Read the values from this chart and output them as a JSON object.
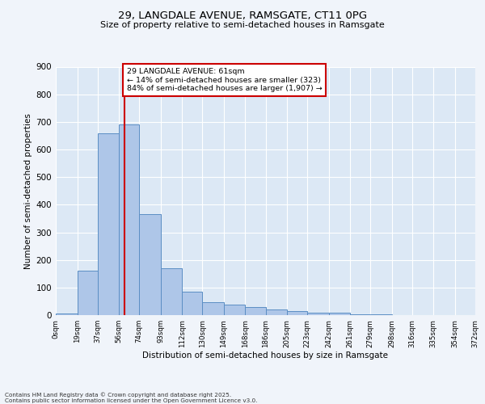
{
  "title1": "29, LANGDALE AVENUE, RAMSGATE, CT11 0PG",
  "title2": "Size of property relative to semi-detached houses in Ramsgate",
  "xlabel": "Distribution of semi-detached houses by size in Ramsgate",
  "ylabel": "Number of semi-detached properties",
  "bar_values": [
    5,
    160,
    660,
    690,
    365,
    170,
    85,
    48,
    38,
    30,
    20,
    14,
    10,
    8,
    4,
    2,
    1,
    1,
    0,
    0
  ],
  "bin_edges": [
    0,
    19,
    37,
    56,
    74,
    93,
    112,
    130,
    149,
    168,
    186,
    205,
    223,
    242,
    261,
    279,
    298,
    316,
    335,
    354,
    372
  ],
  "tick_labels": [
    "0sqm",
    "19sqm",
    "37sqm",
    "56sqm",
    "74sqm",
    "93sqm",
    "112sqm",
    "130sqm",
    "149sqm",
    "168sqm",
    "186sqm",
    "205sqm",
    "223sqm",
    "242sqm",
    "261sqm",
    "279sqm",
    "298sqm",
    "316sqm",
    "335sqm",
    "354sqm",
    "372sqm"
  ],
  "bar_facecolor": "#aec6e8",
  "bar_edgecolor": "#5b8ec4",
  "property_size": 61,
  "annotation_line1": "29 LANGDALE AVENUE: 61sqm",
  "annotation_line2": "← 14% of semi-detached houses are smaller (323)",
  "annotation_line3": "84% of semi-detached houses are larger (1,907) →",
  "vline_color": "#cc0000",
  "annotation_box_edgecolor": "#cc0000",
  "plot_bg_color": "#dce8f5",
  "fig_bg_color": "#f0f4fa",
  "grid_color": "#ffffff",
  "ylim": [
    0,
    900
  ],
  "yticks": [
    0,
    100,
    200,
    300,
    400,
    500,
    600,
    700,
    800,
    900
  ],
  "footnote1": "Contains HM Land Registry data © Crown copyright and database right 2025.",
  "footnote2": "Contains public sector information licensed under the Open Government Licence v3.0."
}
